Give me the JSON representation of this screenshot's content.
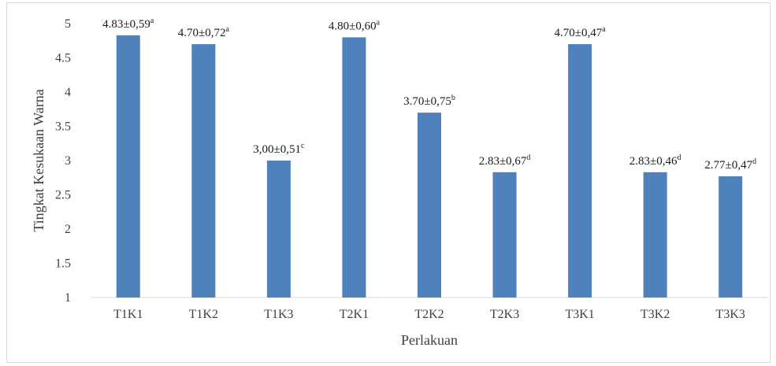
{
  "chart_data": {
    "type": "bar",
    "xlabel": "Perlakuan",
    "ylabel": "Tingkat Kesukaan Warna",
    "ylim": [
      1,
      5
    ],
    "yticks": [
      "1",
      "1.5",
      "2",
      "2.5",
      "3",
      "3.5",
      "4",
      "4.5",
      "5"
    ],
    "grid": false,
    "legend": "none",
    "bar_color": "#4f81bd",
    "categories": [
      "T1K1",
      "T1K2",
      "T1K3",
      "T2K1",
      "T2K2",
      "T2K3",
      "T3K1",
      "T3K2",
      "T3K3"
    ],
    "values": [
      4.83,
      4.7,
      3.0,
      4.8,
      3.7,
      2.83,
      4.7,
      2.83,
      2.77
    ],
    "labels": [
      "4.83±0,59",
      "4.70±0,72",
      "3,00±0,51",
      "4.80±0,60",
      "3.70±0,75",
      "2.83±0,67",
      "4.70±0,47",
      "2.83±0,46",
      "2.77±0,47"
    ],
    "superscripts": [
      "a",
      "a",
      "c",
      "a",
      "b",
      "d",
      "a",
      "d",
      "d"
    ]
  }
}
